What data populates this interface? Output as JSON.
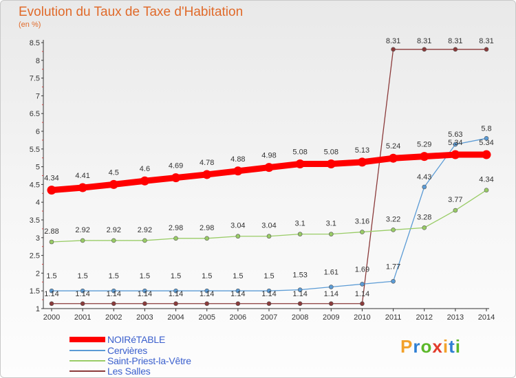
{
  "title": "Evolution du Taux de Taxe d'Habitation",
  "subtitle": "(en %)",
  "logo": {
    "letters": [
      "P",
      "r",
      "o",
      "x",
      "i",
      "t",
      "i"
    ],
    "colors": [
      "#f2a12b",
      "#2f7fd4",
      "#5cb82a",
      "#e23b2b",
      "#f2a12b",
      "#2f7fd4",
      "#5cb82a"
    ]
  },
  "chart_data": {
    "type": "line",
    "title": "Evolution du Taux de Taxe d'Habitation",
    "ylabel": "(en %)",
    "xlabel": "",
    "x": [
      "2000",
      "2001",
      "2002",
      "2003",
      "2004",
      "2005",
      "2006",
      "2007",
      "2008",
      "2009",
      "2010",
      "2011",
      "2012",
      "2013",
      "2014"
    ],
    "ylim": [
      1,
      8.5
    ],
    "yticks": [
      "1",
      "1.5",
      "2",
      "2.5",
      "3",
      "3.5",
      "4",
      "4.5",
      "5",
      "5.5",
      "6",
      "6.5",
      "7",
      "7.5",
      "8",
      "8.5"
    ],
    "grid": false,
    "legend_position": "bottom-left",
    "series": [
      {
        "name": "NOIRéTABLE",
        "color": "#ff0000",
        "values": [
          4.34,
          4.41,
          4.5,
          4.6,
          4.69,
          4.78,
          4.88,
          4.98,
          5.08,
          5.08,
          5.13,
          5.24,
          5.29,
          5.34,
          5.34
        ],
        "labels": [
          "4.34",
          "4.41",
          "4.5",
          "4.6",
          "4.69",
          "4.78",
          "4.88",
          "4.98",
          "5.08",
          "5.08",
          "5.13",
          "5.24",
          "5.29",
          "5.34",
          "5.34"
        ]
      },
      {
        "name": "Cervières",
        "color": "#5b9bd5",
        "values": [
          1.5,
          1.5,
          1.5,
          1.5,
          1.5,
          1.5,
          1.5,
          1.5,
          1.53,
          1.61,
          1.69,
          1.77,
          4.43,
          5.63,
          5.8
        ],
        "labels": [
          "1.5",
          "1.5",
          "1.5",
          "1.5",
          "1.5",
          "1.5",
          "1.5",
          "1.5",
          "1.53",
          "1.61",
          "1.69",
          "1.77",
          "4.43",
          "5.63",
          "5.8"
        ]
      },
      {
        "name": "Saint-Priest-la-Vêtre",
        "color": "#99cc66",
        "values": [
          2.88,
          2.92,
          2.92,
          2.92,
          2.98,
          2.98,
          3.04,
          3.04,
          3.1,
          3.1,
          3.16,
          3.22,
          3.28,
          3.77,
          4.34
        ],
        "labels": [
          "2.88",
          "2.92",
          "2.92",
          "2.92",
          "2.98",
          "2.98",
          "3.04",
          "3.04",
          "3.1",
          "3.1",
          "3.16",
          "3.22",
          "3.28",
          "3.77",
          "4.34"
        ]
      },
      {
        "name": "Les Salles",
        "color": "#8b3a3a",
        "values": [
          1.14,
          1.14,
          1.14,
          1.14,
          1.14,
          1.14,
          1.14,
          1.14,
          1.14,
          1.14,
          1.14,
          8.31,
          8.31,
          8.31,
          8.31
        ],
        "labels": [
          "1.14",
          "1.14",
          "1.14",
          "1.14",
          "1.14",
          "1.14",
          "1.14",
          "1.14",
          "1.14",
          "1.14",
          "1.14",
          "8.31",
          "8.31",
          "8.31",
          "8.31"
        ]
      }
    ]
  }
}
